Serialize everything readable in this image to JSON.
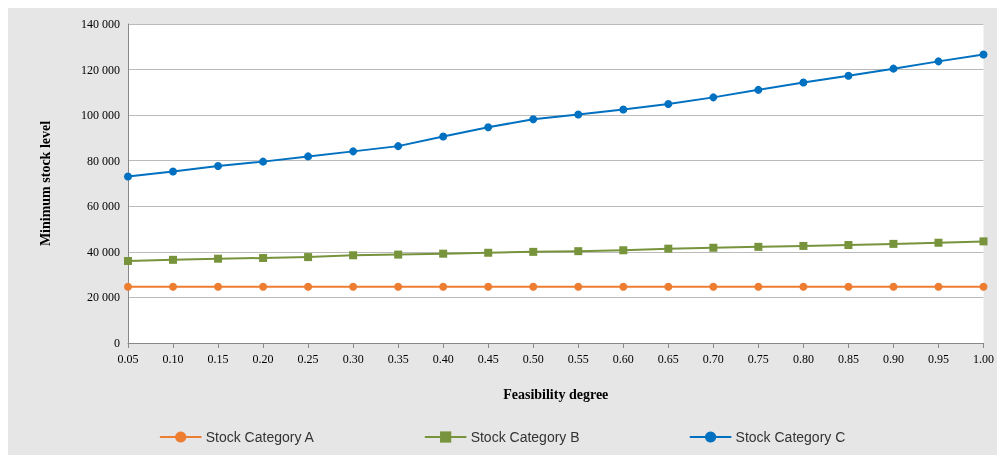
{
  "chart_data": {
    "type": "line",
    "xlabel": "Feasibility degree",
    "ylabel": "Minimum stock level",
    "categories": [
      "0.05",
      "0.10",
      "0.15",
      "0.20",
      "0.25",
      "0.30",
      "0.35",
      "0.40",
      "0.45",
      "0.50",
      "0.55",
      "0.60",
      "0.65",
      "0.70",
      "0.75",
      "0.80",
      "0.85",
      "0.90",
      "0.95",
      "1.00"
    ],
    "series": [
      {
        "name": "Stock Category A",
        "color": "#ed7d31",
        "marker": "circle",
        "values": [
          24700,
          24700,
          24700,
          24700,
          24700,
          24700,
          24700,
          24700,
          24700,
          24700,
          24700,
          24700,
          24700,
          24700,
          24700,
          24700,
          24700,
          24700,
          24700,
          24700
        ]
      },
      {
        "name": "Stock Category B",
        "color": "#77933c",
        "marker": "square",
        "values": [
          36000,
          36500,
          37000,
          37300,
          37700,
          38500,
          38800,
          39200,
          39600,
          40000,
          40300,
          40700,
          41400,
          41800,
          42200,
          42600,
          43000,
          43500,
          44000,
          44600
        ]
      },
      {
        "name": "Stock Category C",
        "color": "#0070c0",
        "marker": "circle",
        "values": [
          73100,
          75300,
          77700,
          79600,
          81900,
          84100,
          86400,
          90600,
          94700,
          98200,
          100300,
          102500,
          104900,
          107800,
          111100,
          114300,
          117300,
          120400,
          123600,
          126600
        ]
      }
    ],
    "ylim": [
      0,
      140000
    ],
    "yticks": [
      0,
      {
        "value": 20000,
        "label": "20 000"
      },
      {
        "value": 40000,
        "label": "40 000"
      },
      {
        "value": 60000,
        "label": "60 000"
      },
      {
        "value": 80000,
        "label": "80 000"
      },
      {
        "value": 100000,
        "label": "100 000"
      },
      {
        "value": 120000,
        "label": "120 000"
      },
      {
        "value": 140000,
        "label": "140 000"
      }
    ],
    "grid": "y",
    "legend": "bottom",
    "line_style": "solid"
  }
}
